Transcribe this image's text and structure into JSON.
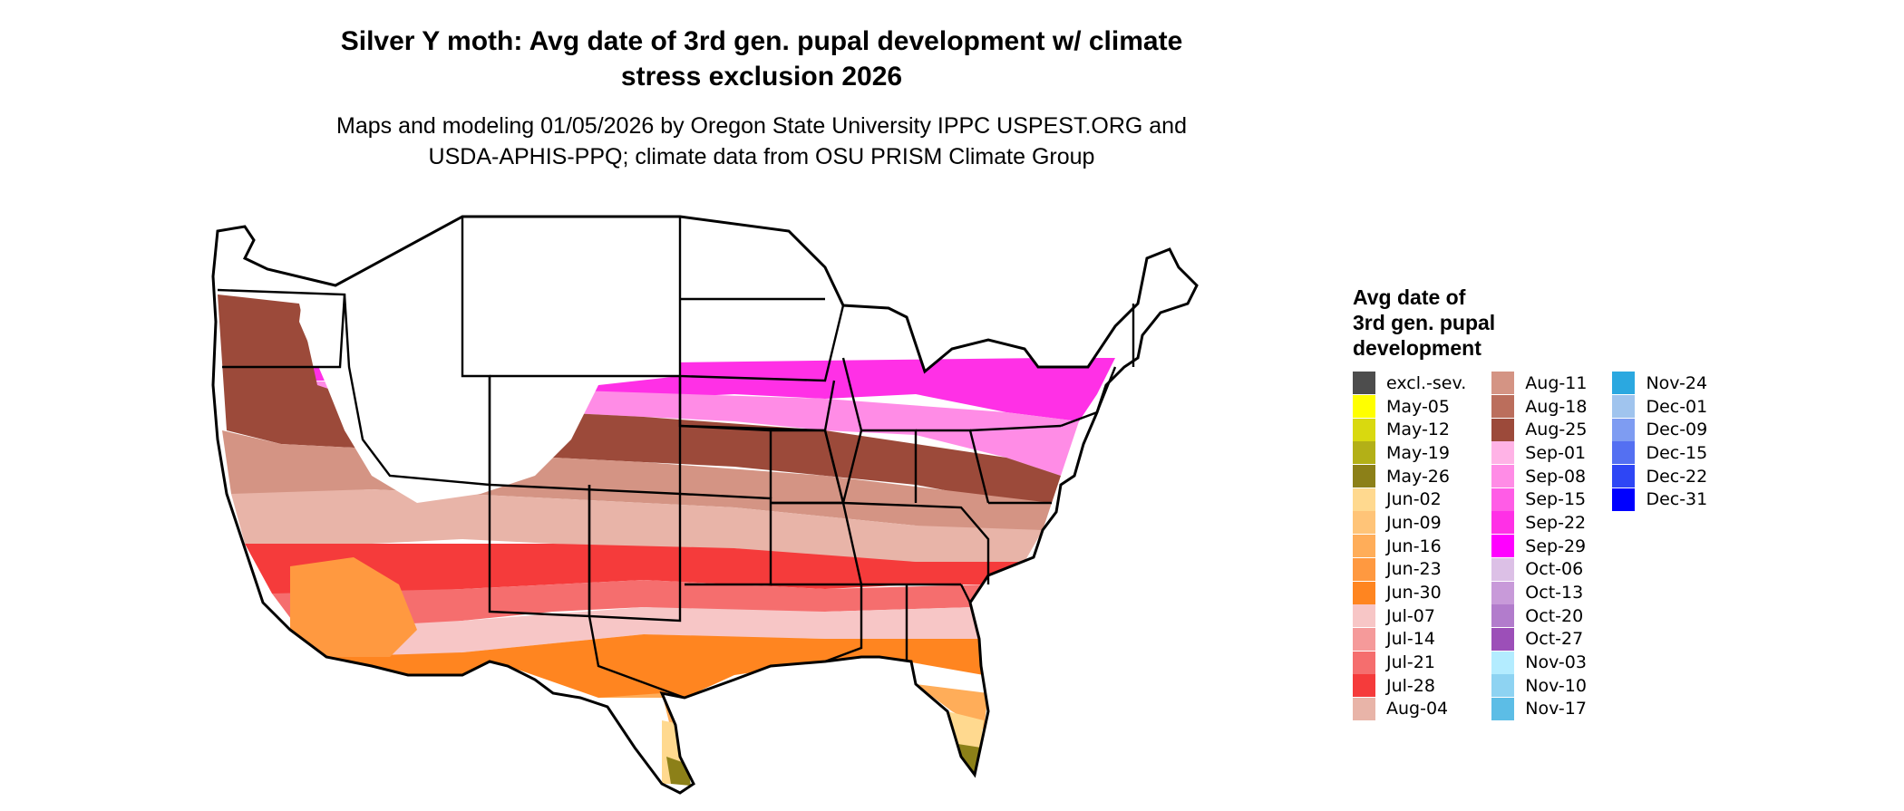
{
  "title": {
    "line1": "Silver Y moth: Avg date of 3rd gen. pupal development w/ climate",
    "line2": "stress exclusion 2026"
  },
  "subtitle": {
    "line1": "Maps and modeling 01/05/2026 by Oregon State University IPPC USPEST.ORG and",
    "line2": "USDA-APHIS-PPQ; climate data from OSU PRISM Climate Group"
  },
  "map": {
    "name": "contiguous-us-state-boundaries"
  },
  "legend": {
    "title_lines": [
      "Avg date of",
      "3rd gen. pupal",
      "development"
    ],
    "items": [
      {
        "label": "excl.-sev.",
        "color": "#4d4d4d"
      },
      {
        "label": "May-05",
        "color": "#ffff00"
      },
      {
        "label": "May-12",
        "color": "#d9d90f"
      },
      {
        "label": "May-19",
        "color": "#b3b017"
      },
      {
        "label": "May-26",
        "color": "#8c8018"
      },
      {
        "label": "Jun-02",
        "color": "#ffd98f"
      },
      {
        "label": "Jun-09",
        "color": "#ffc478"
      },
      {
        "label": "Jun-16",
        "color": "#ffad59"
      },
      {
        "label": "Jun-23",
        "color": "#ff9940"
      },
      {
        "label": "Jun-30",
        "color": "#ff8520"
      },
      {
        "label": "Jul-07",
        "color": "#f7c6c6"
      },
      {
        "label": "Jul-14",
        "color": "#f59a9a"
      },
      {
        "label": "Jul-21",
        "color": "#f56e6e"
      },
      {
        "label": "Jul-28",
        "color": "#f53b3b"
      },
      {
        "label": "Aug-04",
        "color": "#e8b4a8"
      },
      {
        "label": "Aug-11",
        "color": "#d49484"
      },
      {
        "label": "Aug-18",
        "color": "#bb6e5c"
      },
      {
        "label": "Aug-25",
        "color": "#9c4a3a"
      },
      {
        "label": "Sep-01",
        "color": "#ffb3e6"
      },
      {
        "label": "Sep-08",
        "color": "#ff8ce6"
      },
      {
        "label": "Sep-15",
        "color": "#ff5ce6"
      },
      {
        "label": "Sep-22",
        "color": "#ff30e6"
      },
      {
        "label": "Sep-29",
        "color": "#ff00ff"
      },
      {
        "label": "Oct-06",
        "color": "#dcc0e6"
      },
      {
        "label": "Oct-13",
        "color": "#c89ad9"
      },
      {
        "label": "Oct-20",
        "color": "#b27ccc"
      },
      {
        "label": "Oct-27",
        "color": "#9c4fb8"
      },
      {
        "label": "Nov-03",
        "color": "#b3ecff"
      },
      {
        "label": "Nov-10",
        "color": "#8ed3f2"
      },
      {
        "label": "Nov-17",
        "color": "#5cbde6"
      },
      {
        "label": "Nov-24",
        "color": "#2ba8e0"
      },
      {
        "label": "Dec-01",
        "color": "#a0c4ee"
      },
      {
        "label": "Dec-09",
        "color": "#7e9cf2"
      },
      {
        "label": "Dec-15",
        "color": "#5470f2"
      },
      {
        "label": "Dec-22",
        "color": "#2e46f5"
      },
      {
        "label": "Dec-31",
        "color": "#0000ff"
      }
    ]
  }
}
